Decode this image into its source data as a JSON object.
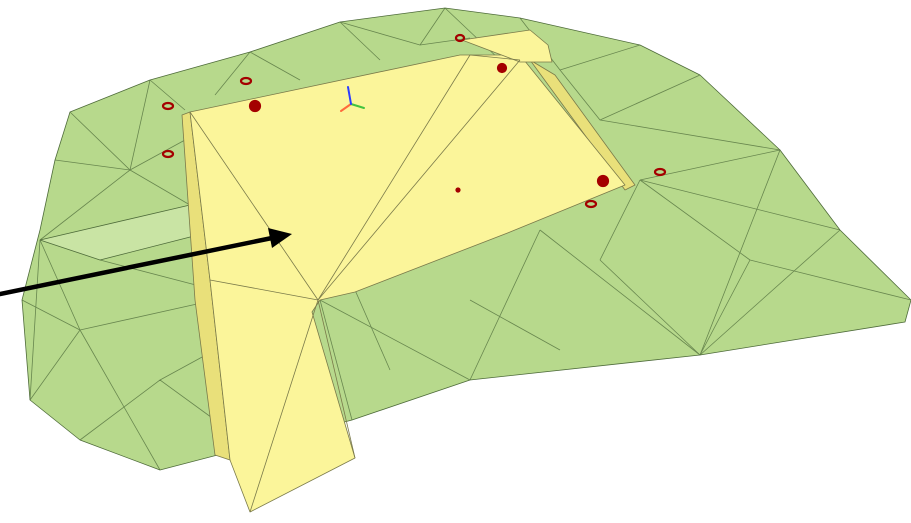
{
  "scene": {
    "background": "#ffffff",
    "terrain": {
      "fill": "#b7d98c",
      "stroke": "#4e6b3a"
    },
    "platform": {
      "top_fill": "#fbf59a",
      "side_fill": "#e9e07a",
      "stroke": "#7a7a4a"
    },
    "marker_color": "#a40000",
    "arrow_color": "#000000",
    "axis_colors": {
      "x": "#ff6a3c",
      "y": "#42c33f",
      "z": "#2c3cff"
    }
  }
}
